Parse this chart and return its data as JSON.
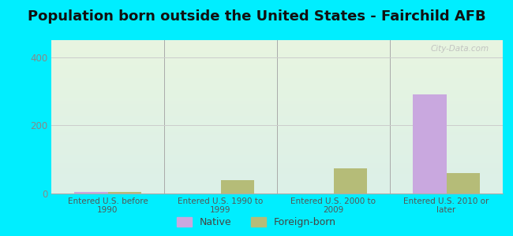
{
  "title": "Population born outside the United States - Fairchild AFB",
  "categories": [
    "Entered U.S. before\n1990",
    "Entered U.S. 1990 to\n1999",
    "Entered U.S. 2000 to\n2009",
    "Entered U.S. 2010 or\nlater"
  ],
  "native_values": [
    5,
    0,
    0,
    290
  ],
  "foreign_born_values": [
    5,
    40,
    75,
    60
  ],
  "native_color": "#c9a8df",
  "foreign_born_color": "#b5bc78",
  "background_outer": "#00eeff",
  "ylim": [
    0,
    450
  ],
  "yticks": [
    0,
    200,
    400
  ],
  "bar_width": 0.3,
  "title_fontsize": 13,
  "watermark": "City-Data.com",
  "grad_top": "#e8f5e0",
  "grad_bottom": "#d8eee8"
}
